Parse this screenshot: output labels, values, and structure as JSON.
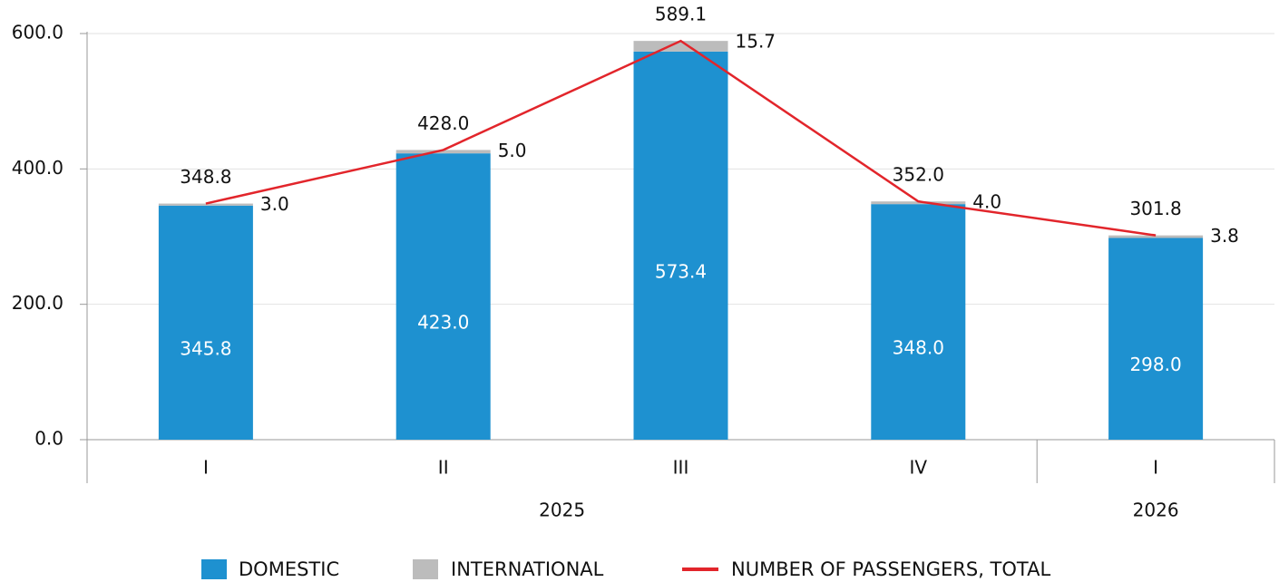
{
  "chart_data": {
    "type": "bar",
    "stacked": true,
    "categories": [
      "I",
      "II",
      "III",
      "IV",
      "I"
    ],
    "groups": [
      {
        "label": "2025",
        "span": 4
      },
      {
        "label": "2026",
        "span": 1
      }
    ],
    "series": [
      {
        "name": "DOMESTIC",
        "color": "#1e91d0",
        "values": [
          345.8,
          423,
          573.4,
          348,
          298
        ],
        "value_labels": [
          "345.8",
          "423.0",
          "573.4",
          "348.0",
          "298.0"
        ]
      },
      {
        "name": "INTERNATIONAL",
        "color": "#bcbcbc",
        "values": [
          3,
          5,
          15.7,
          4,
          3.8
        ],
        "value_labels": [
          "3.0",
          "5.0",
          "15.7",
          "4.0",
          "3.8"
        ]
      },
      {
        "name": "NUMBER OF PASSENGERS, TOTAL",
        "type": "line",
        "color": "#e2252b",
        "values": [
          348.8,
          428,
          589.1,
          352,
          301.8
        ],
        "value_labels": [
          "348.8",
          "428.0",
          "589.1",
          "352.0",
          "301.8"
        ]
      }
    ],
    "ylim": [
      0,
      600
    ],
    "yticks": [
      {
        "value": 0,
        "label": "0.0"
      },
      {
        "value": 200,
        "label": "200.0"
      },
      {
        "value": 400,
        "label": "400.0"
      },
      {
        "value": 600,
        "label": "600.0"
      }
    ],
    "grid": true,
    "legend": "bottom"
  }
}
